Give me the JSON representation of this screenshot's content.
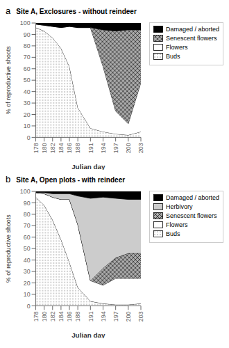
{
  "chart_data": [
    {
      "type": "area",
      "stacked": true,
      "annotations": [
        "a"
      ],
      "title": "Site A, Exclosures - without reindeer",
      "x_label": "Julian day",
      "y_label": "% of reproductive shoots",
      "x": [
        178,
        180,
        182,
        184,
        186,
        188,
        191,
        194,
        197,
        200,
        203
      ],
      "series": [
        {
          "name": "Buds",
          "color": "#ffffff",
          "values": [
            96,
            93,
            87,
            78,
            62,
            26,
            8,
            5,
            3,
            2,
            5
          ]
        },
        {
          "name": "Flowers",
          "color": "#ffffff",
          "values": [
            3,
            5,
            10,
            18,
            35,
            70,
            88,
            57,
            20,
            10,
            43
          ]
        },
        {
          "name": "Senescent flowers",
          "color": "#aaaaaa",
          "values": [
            0,
            0,
            0,
            0,
            0,
            0,
            0,
            32,
            70,
            82,
            46
          ]
        },
        {
          "name": "Damaged / aborted",
          "color": "#000000",
          "values": [
            1,
            2,
            3,
            4,
            3,
            4,
            4,
            6,
            7,
            6,
            6
          ]
        }
      ],
      "xlim": [
        178,
        203
      ],
      "xticks": [
        178,
        180,
        182,
        184,
        186,
        188,
        191,
        194,
        197,
        200,
        203
      ],
      "ylim": [
        0,
        100
      ],
      "yticks": [
        0,
        10,
        20,
        30,
        40,
        50,
        60,
        70,
        80,
        90,
        100
      ],
      "grid": false,
      "legend": "right"
    },
    {
      "type": "area",
      "stacked": true,
      "annotations": [
        "b"
      ],
      "title": "Site A, Open plots - with reindeer",
      "x_label": "Julian day",
      "y_label": "% of reproductive shoots",
      "x": [
        178,
        180,
        182,
        184,
        186,
        188,
        191,
        194,
        197,
        200,
        203
      ],
      "series": [
        {
          "name": "Buds",
          "color": "#ffffff",
          "values": [
            95,
            88,
            75,
            58,
            38,
            16,
            4,
            2,
            1,
            1,
            2
          ]
        },
        {
          "name": "Flowers",
          "color": "#ffffff",
          "values": [
            4,
            10,
            20,
            35,
            55,
            55,
            18,
            16,
            23,
            23,
            22
          ]
        },
        {
          "name": "Senescent flowers",
          "color": "#aaaaaa",
          "values": [
            0,
            0,
            0,
            0,
            0,
            0,
            0,
            15,
            18,
            22,
            22
          ]
        },
        {
          "name": "Herbivory",
          "color": "#cccccc",
          "values": [
            0,
            1,
            3,
            5,
            5,
            25,
            72,
            62,
            52,
            47,
            47
          ]
        },
        {
          "name": "Damaged / aborted",
          "color": "#000000",
          "values": [
            1,
            1,
            2,
            2,
            2,
            4,
            6,
            5,
            6,
            7,
            7
          ]
        }
      ],
      "xlim": [
        178,
        203
      ],
      "xticks": [
        178,
        180,
        182,
        184,
        186,
        188,
        191,
        194,
        197,
        200,
        203
      ],
      "ylim": [
        0,
        100
      ],
      "yticks": [
        0,
        10,
        20,
        30,
        40,
        50,
        60,
        70,
        80,
        90,
        100
      ],
      "grid": false,
      "legend": "right"
    }
  ]
}
